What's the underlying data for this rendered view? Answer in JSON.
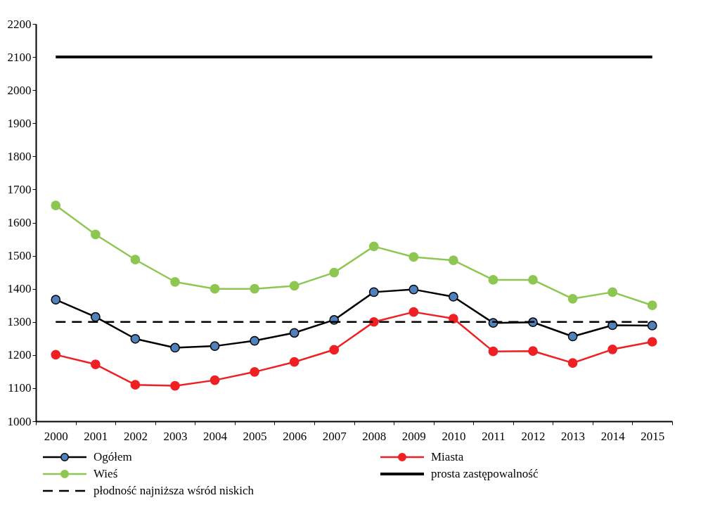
{
  "chart_data": {
    "type": "line",
    "categories": [
      "2000",
      "2001",
      "2002",
      "2003",
      "2004",
      "2005",
      "2006",
      "2007",
      "2008",
      "2009",
      "2010",
      "2011",
      "2012",
      "2013",
      "2014",
      "2015"
    ],
    "ylim": [
      1000,
      2200
    ],
    "yticks": [
      1000,
      1100,
      1200,
      1300,
      1400,
      1500,
      1600,
      1700,
      1800,
      1900,
      2000,
      2100,
      2200
    ],
    "grid": false,
    "legend": "bottom",
    "series": [
      {
        "name": "Ogółem",
        "color": "#000000",
        "colors": [
          "#4f81bd",
          "#4f81bd",
          "#4f81bd",
          "#4f81bd",
          "#4f81bd",
          "#4f81bd",
          "#4f81bd",
          "#4f81bd",
          "#4f81bd",
          "#4f81bd",
          "#4f81bd",
          "#4f81bd",
          "#4f81bd",
          "#4f81bd",
          "#4f81bd",
          "#4f81bd"
        ],
        "marker": "circle",
        "line_style": "solid",
        "values": [
          1367,
          1315,
          1249,
          1222,
          1227,
          1243,
          1267,
          1306,
          1390,
          1398,
          1376,
          1297,
          1299,
          1256,
          1290,
          1289
        ]
      },
      {
        "name": "Miasta",
        "color": "#ee2024",
        "marker": "circle",
        "line_style": "solid",
        "values": [
          1201,
          1172,
          1110,
          1107,
          1124,
          1149,
          1179,
          1216,
          1300,
          1330,
          1310,
          1211,
          1212,
          1176,
          1217,
          1240
        ]
      },
      {
        "name": "Wieś",
        "color": "#8dc752",
        "marker": "circle",
        "line_style": "solid",
        "values": [
          1652,
          1564,
          1488,
          1421,
          1400,
          1400,
          1409,
          1449,
          1528,
          1496,
          1486,
          1427,
          1427,
          1370,
          1390,
          1350
        ]
      },
      {
        "name": "prosta zastępowalność",
        "color": "#000000",
        "marker": "none",
        "line_style": "solid",
        "values": [
          2100,
          2100,
          2100,
          2100,
          2100,
          2100,
          2100,
          2100,
          2100,
          2100,
          2100,
          2100,
          2100,
          2100,
          2100,
          2100
        ]
      },
      {
        "name": "płodność najniższa wśród niskich",
        "color": "#000000",
        "marker": "none",
        "line_style": "dashed",
        "values": [
          1300,
          1300,
          1300,
          1300,
          1300,
          1300,
          1300,
          1300,
          1300,
          1300,
          1300,
          1300,
          1300,
          1300,
          1300,
          1300
        ]
      }
    ]
  }
}
